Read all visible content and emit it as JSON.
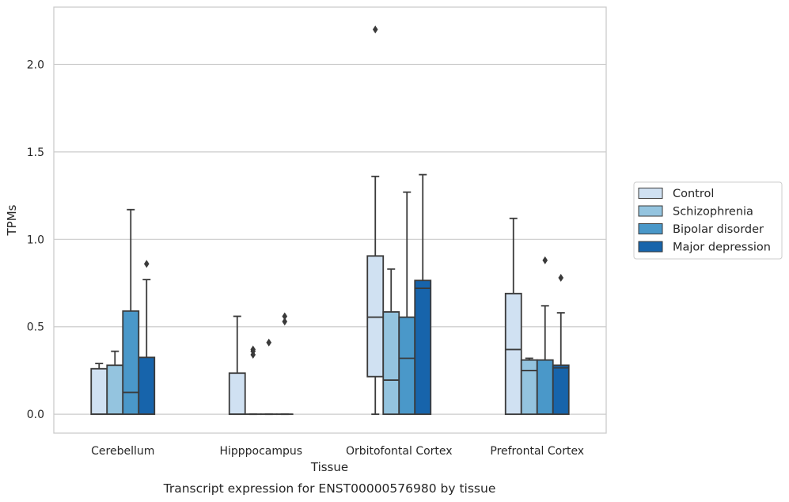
{
  "chart_data": {
    "type": "box",
    "caption": "Transcript expression for ENST00000576980 by tissue",
    "xlabel": "Tissue",
    "ylabel": "TPMs",
    "ylim": [
      -0.108,
      2.328
    ],
    "yticks": [
      0.0,
      0.5,
      1.0,
      1.5,
      2.0
    ],
    "ytick_labels": [
      "0.0",
      "0.5",
      "1.0",
      "1.5",
      "2.0"
    ],
    "grid": "horizontal",
    "legend_position": "right",
    "categories": [
      "Cerebellum",
      "Hipppocampus",
      "Orbitofontal Cortex",
      "Prefrontal Cortex"
    ],
    "series": [
      {
        "name": "Control",
        "color": "#d0e1f2",
        "boxes": [
          {
            "whislo": 0.0,
            "q1": 0.0,
            "med": 0.0,
            "q3": 0.26,
            "whishi": 0.29,
            "fliers": []
          },
          {
            "whislo": 0.0,
            "q1": 0.0,
            "med": 0.0,
            "q3": 0.235,
            "whishi": 0.56,
            "fliers": []
          },
          {
            "whislo": 0.0,
            "q1": 0.215,
            "med": 0.555,
            "q3": 0.905,
            "whishi": 1.36,
            "fliers": [
              2.2
            ]
          },
          {
            "whislo": 0.0,
            "q1": 0.0,
            "med": 0.37,
            "q3": 0.69,
            "whishi": 1.12,
            "fliers": []
          }
        ]
      },
      {
        "name": "Schizophrenia",
        "color": "#94c4df",
        "boxes": [
          {
            "whislo": 0.0,
            "q1": 0.0,
            "med": 0.0,
            "q3": 0.28,
            "whishi": 0.36,
            "fliers": []
          },
          {
            "whislo": 0.0,
            "q1": 0.0,
            "med": 0.0,
            "q3": 0.0,
            "whishi": 0.0,
            "fliers": [
              0.34,
              0.36,
              0.37
            ]
          },
          {
            "whislo": 0.0,
            "q1": 0.0,
            "med": 0.195,
            "q3": 0.585,
            "whishi": 0.83,
            "fliers": []
          },
          {
            "whislo": 0.0,
            "q1": 0.0,
            "med": 0.25,
            "q3": 0.31,
            "whishi": 0.32,
            "fliers": []
          }
        ]
      },
      {
        "name": "Bipolar disorder",
        "color": "#4a98c9",
        "boxes": [
          {
            "whislo": 0.0,
            "q1": 0.0,
            "med": 0.125,
            "q3": 0.59,
            "whishi": 1.17,
            "fliers": []
          },
          {
            "whislo": 0.0,
            "q1": 0.0,
            "med": 0.0,
            "q3": 0.0,
            "whishi": 0.0,
            "fliers": [
              0.41
            ]
          },
          {
            "whislo": 0.0,
            "q1": 0.0,
            "med": 0.32,
            "q3": 0.555,
            "whishi": 1.27,
            "fliers": []
          },
          {
            "whislo": 0.0,
            "q1": 0.0,
            "med": 0.0,
            "q3": 0.31,
            "whishi": 0.62,
            "fliers": [
              0.88
            ]
          }
        ]
      },
      {
        "name": "Major depression",
        "color": "#1764ab",
        "boxes": [
          {
            "whislo": 0.0,
            "q1": 0.0,
            "med": 0.0,
            "q3": 0.325,
            "whishi": 0.77,
            "fliers": [
              0.86
            ]
          },
          {
            "whislo": 0.0,
            "q1": 0.0,
            "med": 0.0,
            "q3": 0.0,
            "whishi": 0.0,
            "fliers": [
              0.53,
              0.56
            ]
          },
          {
            "whislo": 0.0,
            "q1": 0.0,
            "med": 0.72,
            "q3": 0.765,
            "whishi": 1.37,
            "fliers": []
          },
          {
            "whislo": 0.0,
            "q1": 0.0,
            "med": 0.265,
            "q3": 0.28,
            "whishi": 0.58,
            "fliers": [
              0.78
            ]
          }
        ]
      }
    ]
  }
}
